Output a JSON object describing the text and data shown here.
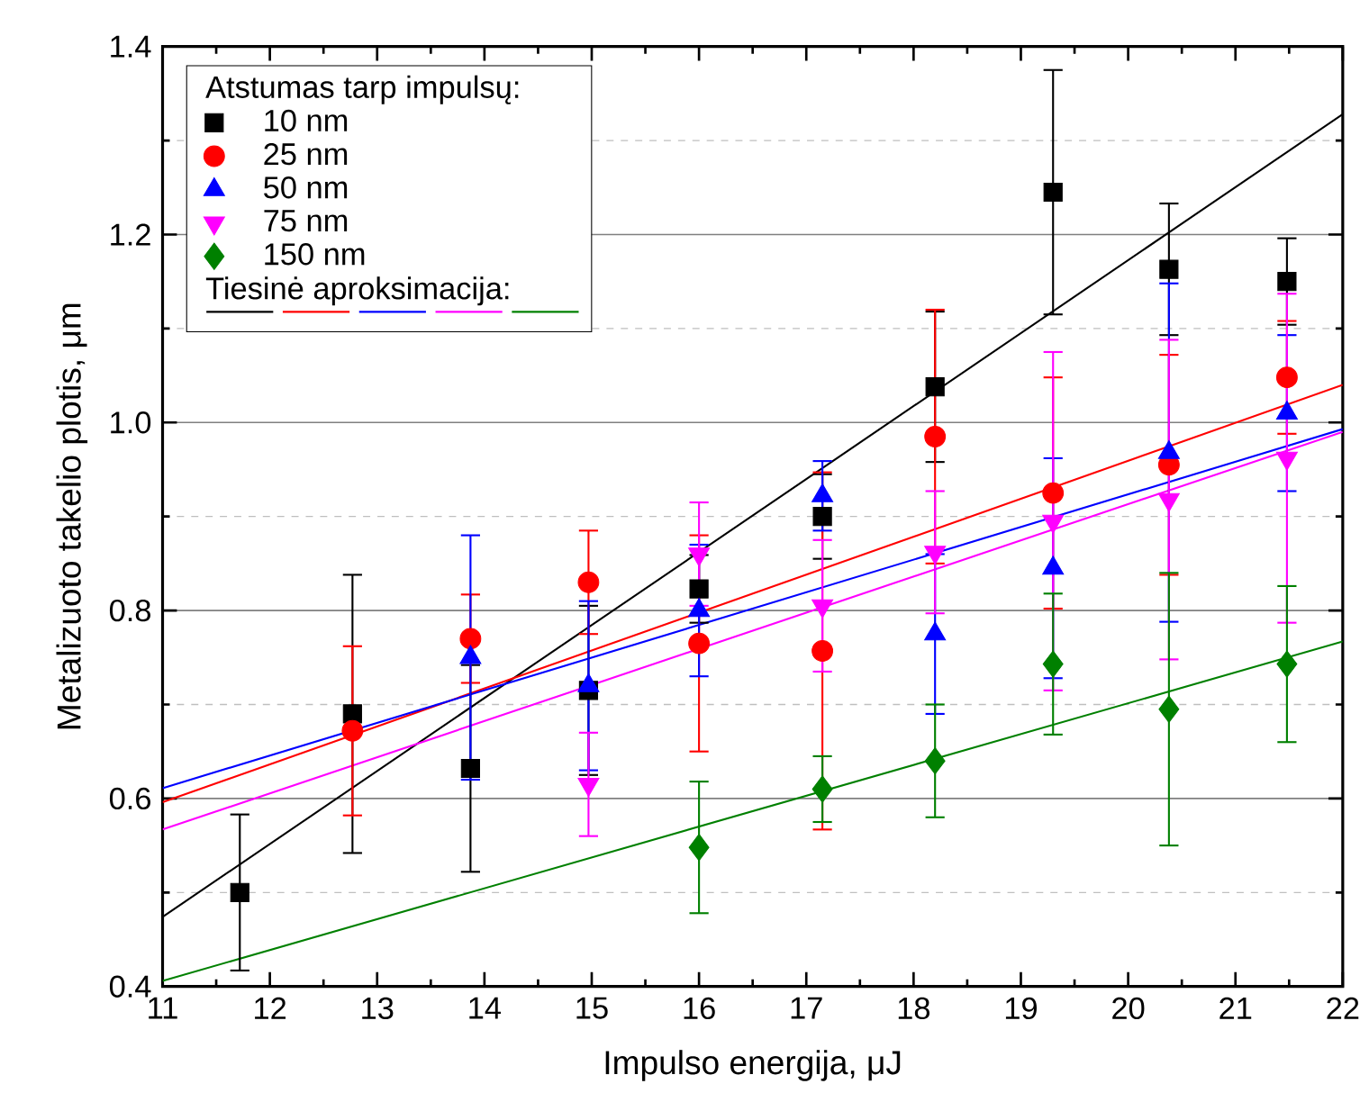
{
  "chart_data": {
    "type": "scatter",
    "xlabel": "Impulso energija, μJ",
    "ylabel": "Metalizuoto takelio plotis, μm",
    "legend_title": "Atstumas tarp impulsų:",
    "annotations": [
      "Tiesinė aproksimacija:"
    ],
    "xlim": [
      11,
      22
    ],
    "ylim": [
      0.4,
      1.4
    ],
    "xticks": [
      11,
      12,
      13,
      14,
      15,
      16,
      17,
      18,
      19,
      20,
      21,
      22
    ],
    "yticks": [
      0.4,
      0.6,
      0.8,
      {
        "value": 1.0,
        "label": "1.0"
      },
      1.2,
      1.4
    ],
    "grid": "y",
    "legend": "top left",
    "series": [
      {
        "name": "10 nm",
        "color": "#000000",
        "marker": "square",
        "x": [
          11.72,
          12.77,
          13.87,
          14.97,
          16.0,
          17.15,
          18.2,
          19.3,
          20.38,
          21.48
        ],
        "values": [
          0.5,
          0.69,
          0.632,
          0.715,
          0.823,
          0.9,
          1.038,
          1.245,
          1.163,
          1.15
        ],
        "errors": [
          0.083,
          0.148,
          0.11,
          0.09,
          0.036,
          0.045,
          0.08,
          0.13,
          0.07,
          0.046
        ]
      },
      {
        "name": "25 nm",
        "color": "#ff0000",
        "marker": "circle",
        "x": [
          12.77,
          13.87,
          14.97,
          16.0,
          17.15,
          18.2,
          19.3,
          20.38,
          21.48
        ],
        "values": [
          0.672,
          0.77,
          0.83,
          0.765,
          0.757,
          0.985,
          0.925,
          0.955,
          1.048
        ],
        "errors": [
          0.09,
          0.047,
          0.055,
          0.115,
          0.19,
          0.135,
          0.123,
          0.117,
          0.06
        ]
      },
      {
        "name": "50 nm",
        "color": "#0000ff",
        "marker": "triangle",
        "x": [
          13.87,
          14.97,
          16.0,
          17.15,
          18.2,
          19.3,
          20.38,
          21.48
        ],
        "values": [
          0.75,
          0.72,
          0.8,
          0.922,
          0.775,
          0.845,
          0.968,
          1.01
        ],
        "errors": [
          0.13,
          0.09,
          0.07,
          0.037,
          0.085,
          0.117,
          0.18,
          0.083
        ]
      },
      {
        "name": "75 nm",
        "color": "#ff00ff",
        "marker": "triangle-down",
        "x": [
          14.97,
          16.0,
          17.15,
          18.2,
          19.3,
          20.38,
          21.48
        ],
        "values": [
          0.615,
          0.86,
          0.805,
          0.862,
          0.895,
          0.918,
          0.962
        ],
        "errors": [
          0.055,
          0.055,
          0.07,
          0.065,
          0.18,
          0.17,
          0.175
        ]
      },
      {
        "name": "150 nm",
        "color": "#008000",
        "marker": "diamond",
        "x": [
          16.0,
          17.15,
          18.2,
          19.3,
          20.38,
          21.48
        ],
        "values": [
          0.548,
          0.61,
          0.64,
          0.743,
          0.695,
          0.743
        ],
        "errors": [
          0.07,
          0.035,
          0.06,
          0.075,
          0.145,
          0.083
        ]
      },
      {
        "type": "line",
        "color": "#000000",
        "x": [
          11,
          22
        ],
        "values": [
          0.474,
          1.328
        ]
      },
      {
        "type": "line",
        "color": "#ff0000",
        "x": [
          11,
          22
        ],
        "values": [
          0.596,
          1.04
        ]
      },
      {
        "type": "line",
        "color": "#0000ff",
        "x": [
          11,
          22
        ],
        "values": [
          0.611,
          0.993
        ]
      },
      {
        "type": "line",
        "color": "#ff00ff",
        "x": [
          11,
          22
        ],
        "values": [
          0.567,
          0.99
        ]
      },
      {
        "type": "line",
        "color": "#008000",
        "x": [
          11,
          22
        ],
        "values": [
          0.406,
          0.767
        ]
      }
    ]
  }
}
